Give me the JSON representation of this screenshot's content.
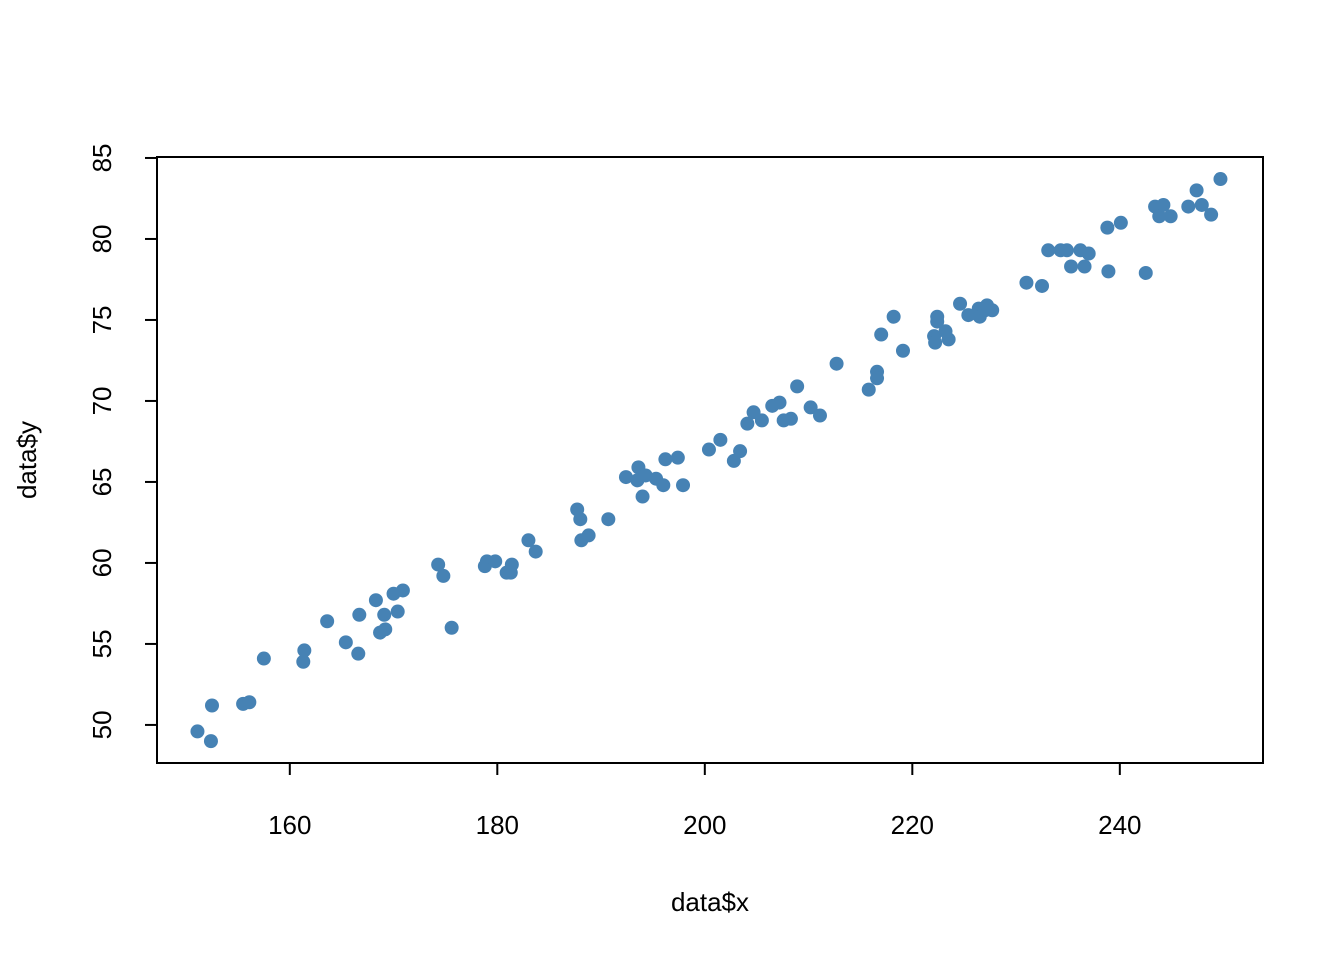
{
  "chart_data": {
    "type": "scatter",
    "xlabel": "data$x",
    "ylabel": "data$y",
    "color": "#4682b4",
    "xlim": [
      147.2,
      253.8
    ],
    "ylim": [
      47.65,
      85.06
    ],
    "xticks": [
      160,
      180,
      200,
      220,
      240
    ],
    "yticks": [
      50,
      55,
      60,
      65,
      70,
      75,
      80,
      85
    ],
    "x": [
      151.1,
      152.4,
      152.5,
      155.5,
      156.1,
      157.5,
      161.3,
      161.4,
      163.6,
      165.4,
      166.6,
      166.7,
      168.3,
      168.7,
      169.1,
      169.2,
      170.0,
      170.4,
      170.9,
      174.3,
      174.8,
      175.6,
      178.8,
      179.0,
      179.8,
      180.9,
      181.3,
      181.4,
      183.0,
      183.7,
      187.7,
      188.0,
      188.1,
      188.8,
      190.7,
      192.4,
      193.5,
      193.6,
      194.0,
      194.3,
      195.3,
      196.0,
      196.2,
      197.4,
      197.9,
      200.4,
      201.5,
      202.8,
      203.4,
      204.1,
      204.7,
      205.5,
      206.5,
      207.2,
      207.6,
      208.3,
      208.9,
      210.2,
      211.1,
      212.7,
      215.8,
      216.6,
      216.6,
      217.0,
      218.2,
      219.1,
      222.1,
      222.2,
      222.4,
      222.4,
      223.2,
      223.5,
      224.6,
      225.4,
      226.4,
      226.5,
      227.0,
      227.2,
      227.7,
      231.0,
      232.5,
      233.1,
      234.3,
      234.9,
      235.3,
      236.2,
      236.6,
      237.0,
      238.8,
      238.9,
      240.1,
      242.5,
      243.4,
      243.8,
      244.2,
      244.9,
      246.6,
      247.4,
      247.9,
      248.8,
      249.7
    ],
    "values": [
      49.6,
      49.0,
      51.2,
      51.3,
      51.4,
      54.1,
      53.9,
      54.6,
      56.4,
      55.1,
      54.4,
      56.8,
      57.7,
      55.7,
      56.8,
      55.9,
      58.1,
      57.0,
      58.3,
      59.9,
      59.2,
      56.0,
      59.8,
      60.1,
      60.1,
      59.4,
      59.4,
      59.9,
      61.4,
      60.7,
      63.3,
      62.7,
      61.4,
      61.7,
      62.7,
      65.3,
      65.1,
      65.9,
      64.1,
      65.4,
      65.2,
      64.8,
      66.4,
      66.5,
      64.8,
      67.0,
      67.6,
      66.3,
      66.9,
      68.6,
      69.3,
      68.8,
      69.7,
      69.9,
      68.8,
      68.9,
      70.9,
      69.6,
      69.1,
      72.3,
      70.7,
      71.8,
      71.4,
      74.1,
      75.2,
      73.1,
      74.0,
      73.6,
      75.2,
      74.9,
      74.3,
      73.8,
      76.0,
      75.3,
      75.7,
      75.2,
      75.6,
      75.9,
      75.6,
      77.3,
      77.1,
      79.3,
      79.3,
      79.3,
      78.3,
      79.3,
      78.3,
      79.1,
      80.7,
      78.0,
      81.0,
      77.9,
      82.0,
      81.4,
      82.1,
      81.4,
      82.0,
      83.0,
      82.1,
      81.5,
      83.7
    ]
  }
}
